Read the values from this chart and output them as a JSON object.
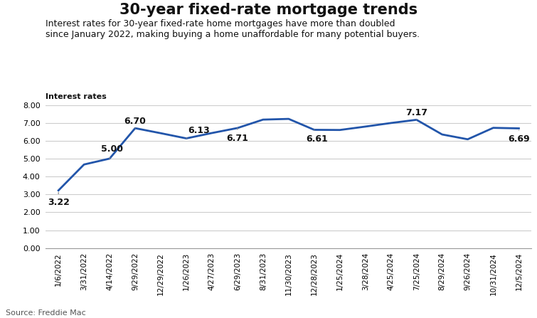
{
  "title": "30-year fixed-rate mortgage trends",
  "subtitle_line1": "Interest rates for 30-year fixed-rate home mortgages have more than doubled",
  "subtitle_line2": "since January 2022, making buying a home unaffordable for many potential buyers.",
  "ylabel": "Interest rates",
  "source": "Source: Freddie Mac",
  "line_color": "#2255aa",
  "background_color": "#ffffff",
  "ylim": [
    0.0,
    8.0
  ],
  "yticks": [
    0.0,
    1.0,
    2.0,
    3.0,
    4.0,
    5.0,
    6.0,
    7.0,
    8.0
  ],
  "x_labels": [
    "1/6/2022",
    "3/31/2022",
    "4/14/2022",
    "9/29/2022",
    "12/29/2022",
    "1/26/2023",
    "4/27/2023",
    "6/29/2023",
    "8/31/2023",
    "11/30/2023",
    "12/28/2023",
    "1/25/2024",
    "3/28/2024",
    "4/25/2024",
    "7/25/2024",
    "8/29/2024",
    "9/26/2024",
    "10/31/2024",
    "12/5/2024"
  ],
  "y_values": [
    3.22,
    4.67,
    5.0,
    6.7,
    6.42,
    6.13,
    6.43,
    6.71,
    7.18,
    7.22,
    6.61,
    6.6,
    6.79,
    6.99,
    7.17,
    6.35,
    6.08,
    6.72,
    6.69
  ],
  "annotations": [
    {
      "label": "3.22",
      "xi": 0,
      "yi": 3.22,
      "xt": 0,
      "yt": 2.55,
      "ha": "center",
      "arrow": true
    },
    {
      "label": "5.00",
      "xi": 2,
      "yi": 5.0,
      "xt": 2.1,
      "yt": 5.55,
      "ha": "center",
      "arrow": true
    },
    {
      "label": "6.70",
      "xi": 3,
      "yi": 6.7,
      "xt": 3.0,
      "yt": 7.1,
      "ha": "center",
      "arrow": true
    },
    {
      "label": "6.13",
      "xi": 5,
      "yi": 6.13,
      "xt": 5.5,
      "yt": 6.58,
      "ha": "center",
      "arrow": true
    },
    {
      "label": "6.71",
      "xi": 7,
      "yi": 6.71,
      "xt": 7.0,
      "yt": 6.15,
      "ha": "center",
      "arrow": true
    },
    {
      "label": "6.61",
      "xi": 10,
      "yi": 6.61,
      "xt": 10.1,
      "yt": 6.1,
      "ha": "center",
      "arrow": true
    },
    {
      "label": "7.17",
      "xi": 14,
      "yi": 7.17,
      "xt": 14.0,
      "yt": 7.55,
      "ha": "center",
      "arrow": true
    },
    {
      "label": "6.69",
      "xi": 18,
      "yi": 6.69,
      "xt": 18.0,
      "yt": 6.1,
      "ha": "center",
      "arrow": true
    }
  ]
}
